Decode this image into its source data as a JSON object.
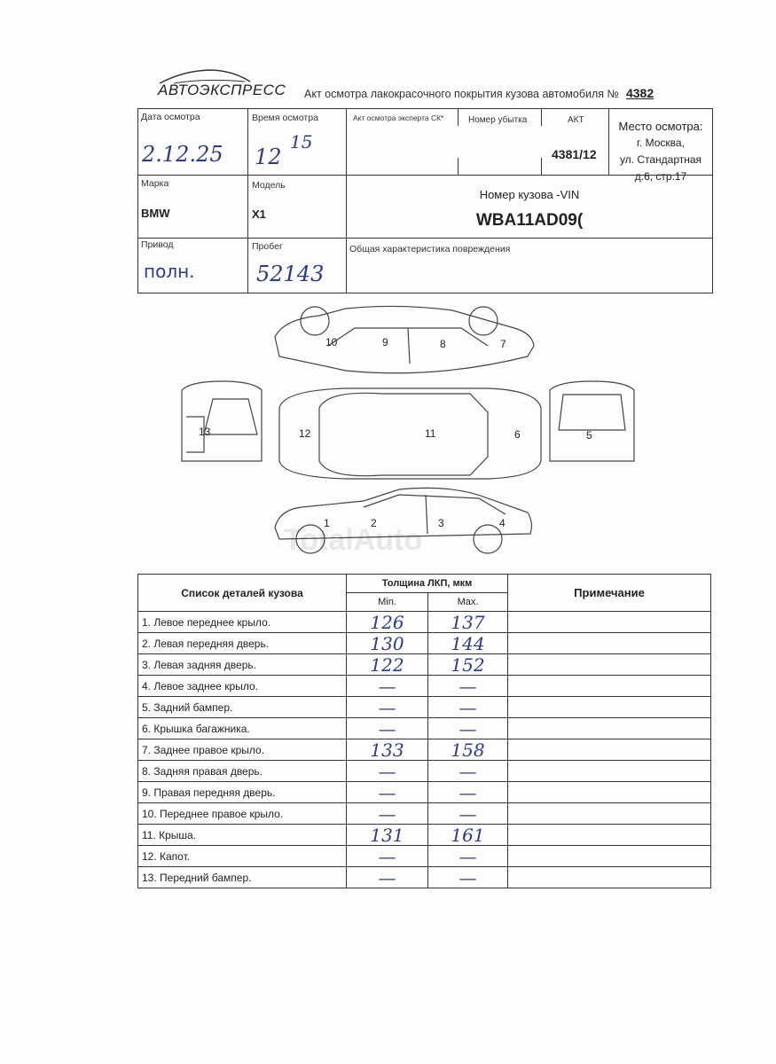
{
  "header": {
    "logo": "АВТОЭКСПРЕСС",
    "title": "Акт осмотра лакокрасочного покрытия кузова автомобиля",
    "number_sign": "№",
    "number": "4382"
  },
  "info": {
    "date_label": "Дата осмотра",
    "date_value": "2.12.25",
    "time_label": "Время осмотра",
    "time_hours": "12",
    "time_minutes": "15",
    "expert_act_label": "Акт осмотра эксперта СК*",
    "loss_number_label": "Номер убытка",
    "act_label": "АКТ",
    "act_value": "4381/12",
    "place_label": "Место осмотра:",
    "place_lines": [
      "г. Москва,",
      "ул. Стандартная",
      "д.6, стр.17"
    ],
    "brand_label": "Марка",
    "brand_value": "BMW",
    "model_label": "Модель",
    "model_value": "X1",
    "vin_label": "Номер кузова -VIN",
    "vin_value": "WBA11AD09(",
    "drive_label": "Привод",
    "drive_value": "полн.",
    "mileage_label": "Пробег",
    "mileage_value": "52143",
    "damage_label": "Общая характеристика повреждения"
  },
  "diagram": {
    "labels": [
      "1",
      "2",
      "3",
      "4",
      "5",
      "6",
      "7",
      "8",
      "9",
      "10",
      "11",
      "12",
      "13"
    ]
  },
  "watermark": "TotalAuto",
  "parts_table": {
    "col_parts": "Список деталей кузова",
    "col_thickness": "Толщина ЛКП, мкм",
    "col_min": "Min.",
    "col_max": "Max.",
    "col_note": "Примечание",
    "rows": [
      {
        "part": "1. Левое переднее крыло.",
        "min": "126",
        "max": "137"
      },
      {
        "part": "2. Левая передняя дверь.",
        "min": "130",
        "max": "144"
      },
      {
        "part": "3. Левая задняя дверь.",
        "min": "122",
        "max": "152"
      },
      {
        "part": "4. Левое заднее крыло.",
        "min": "—",
        "max": "—"
      },
      {
        "part": "5. Задний бампер.",
        "min": "—",
        "max": "—"
      },
      {
        "part": "6. Крышка багажника.",
        "min": "—",
        "max": "—"
      },
      {
        "part": "7. Заднее правое крыло.",
        "min": "133",
        "max": "158"
      },
      {
        "part": "8. Задняя правая дверь.",
        "min": "—",
        "max": "—"
      },
      {
        "part": "9. Правая передняя дверь.",
        "min": "—",
        "max": "—"
      },
      {
        "part": "10. Переднее правое крыло.",
        "min": "—",
        "max": "—"
      },
      {
        "part": "11. Крыша.",
        "min": "131",
        "max": "161"
      },
      {
        "part": "12. Капот.",
        "min": "—",
        "max": "—"
      },
      {
        "part": "13. Передний бампер.",
        "min": "—",
        "max": "—"
      }
    ]
  }
}
